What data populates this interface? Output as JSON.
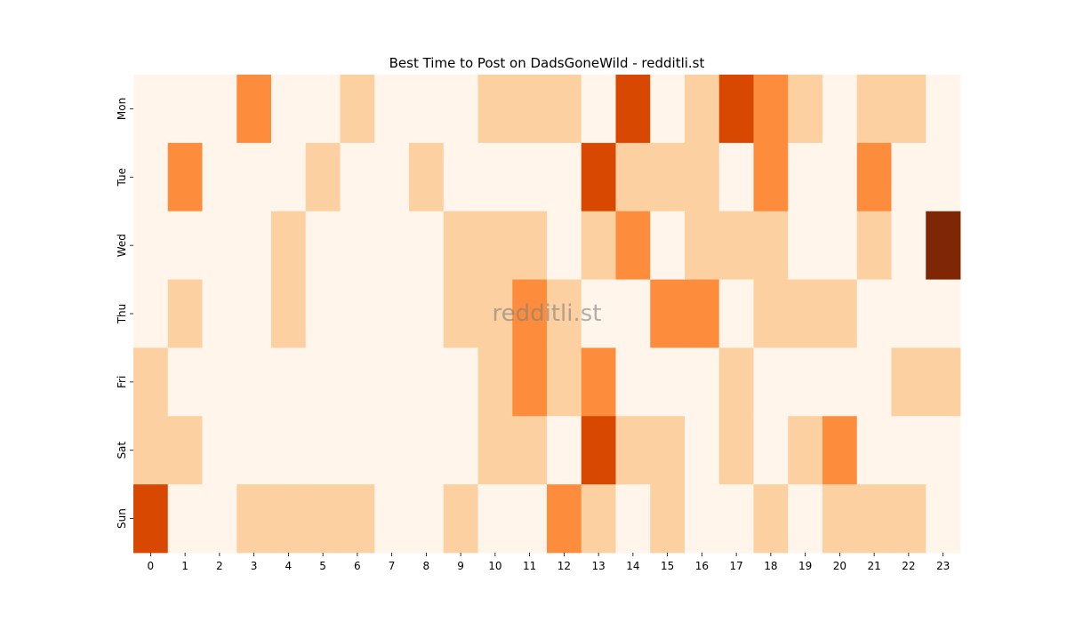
{
  "chart_data": {
    "type": "heatmap",
    "title": "Best Time to Post on DadsGoneWild - redditli.st",
    "watermark": "redditli.st",
    "x_categories": [
      "0",
      "1",
      "2",
      "3",
      "4",
      "5",
      "6",
      "7",
      "8",
      "9",
      "10",
      "11",
      "12",
      "13",
      "14",
      "15",
      "16",
      "17",
      "18",
      "19",
      "20",
      "21",
      "22",
      "23"
    ],
    "y_categories": [
      "Mon",
      "Tue",
      "Wed",
      "Thu",
      "Fri",
      "Sat",
      "Sun"
    ],
    "values": [
      [
        0,
        0,
        0,
        2,
        0,
        0,
        1,
        0,
        0,
        0,
        1,
        1,
        1,
        0,
        3,
        0,
        1,
        3,
        2,
        1,
        0,
        1,
        1,
        0
      ],
      [
        0,
        2,
        0,
        0,
        0,
        1,
        0,
        0,
        1,
        0,
        0,
        0,
        0,
        3,
        1,
        1,
        1,
        0,
        2,
        0,
        0,
        2,
        0,
        0
      ],
      [
        0,
        0,
        0,
        0,
        1,
        0,
        0,
        0,
        0,
        1,
        1,
        1,
        0,
        1,
        2,
        0,
        1,
        1,
        1,
        0,
        0,
        1,
        0,
        4
      ],
      [
        0,
        1,
        0,
        0,
        1,
        0,
        0,
        0,
        0,
        1,
        1,
        2,
        1,
        0,
        0,
        2,
        2,
        0,
        1,
        1,
        1,
        0,
        0,
        0
      ],
      [
        1,
        0,
        0,
        0,
        0,
        0,
        0,
        0,
        0,
        0,
        1,
        2,
        1,
        2,
        0,
        0,
        0,
        1,
        0,
        0,
        0,
        0,
        1,
        1
      ],
      [
        1,
        1,
        0,
        0,
        0,
        0,
        0,
        0,
        0,
        0,
        1,
        1,
        0,
        3,
        1,
        1,
        0,
        1,
        0,
        1,
        2,
        0,
        0,
        0
      ],
      [
        3,
        0,
        0,
        1,
        1,
        1,
        1,
        0,
        0,
        1,
        0,
        0,
        2,
        1,
        0,
        1,
        0,
        0,
        1,
        0,
        1,
        1,
        1,
        0
      ]
    ],
    "colorscale": [
      "#fff5eb",
      "#fdd0a2",
      "#fd8d3c",
      "#d94801",
      "#7f2704"
    ],
    "grid": false,
    "colorbar": false
  }
}
